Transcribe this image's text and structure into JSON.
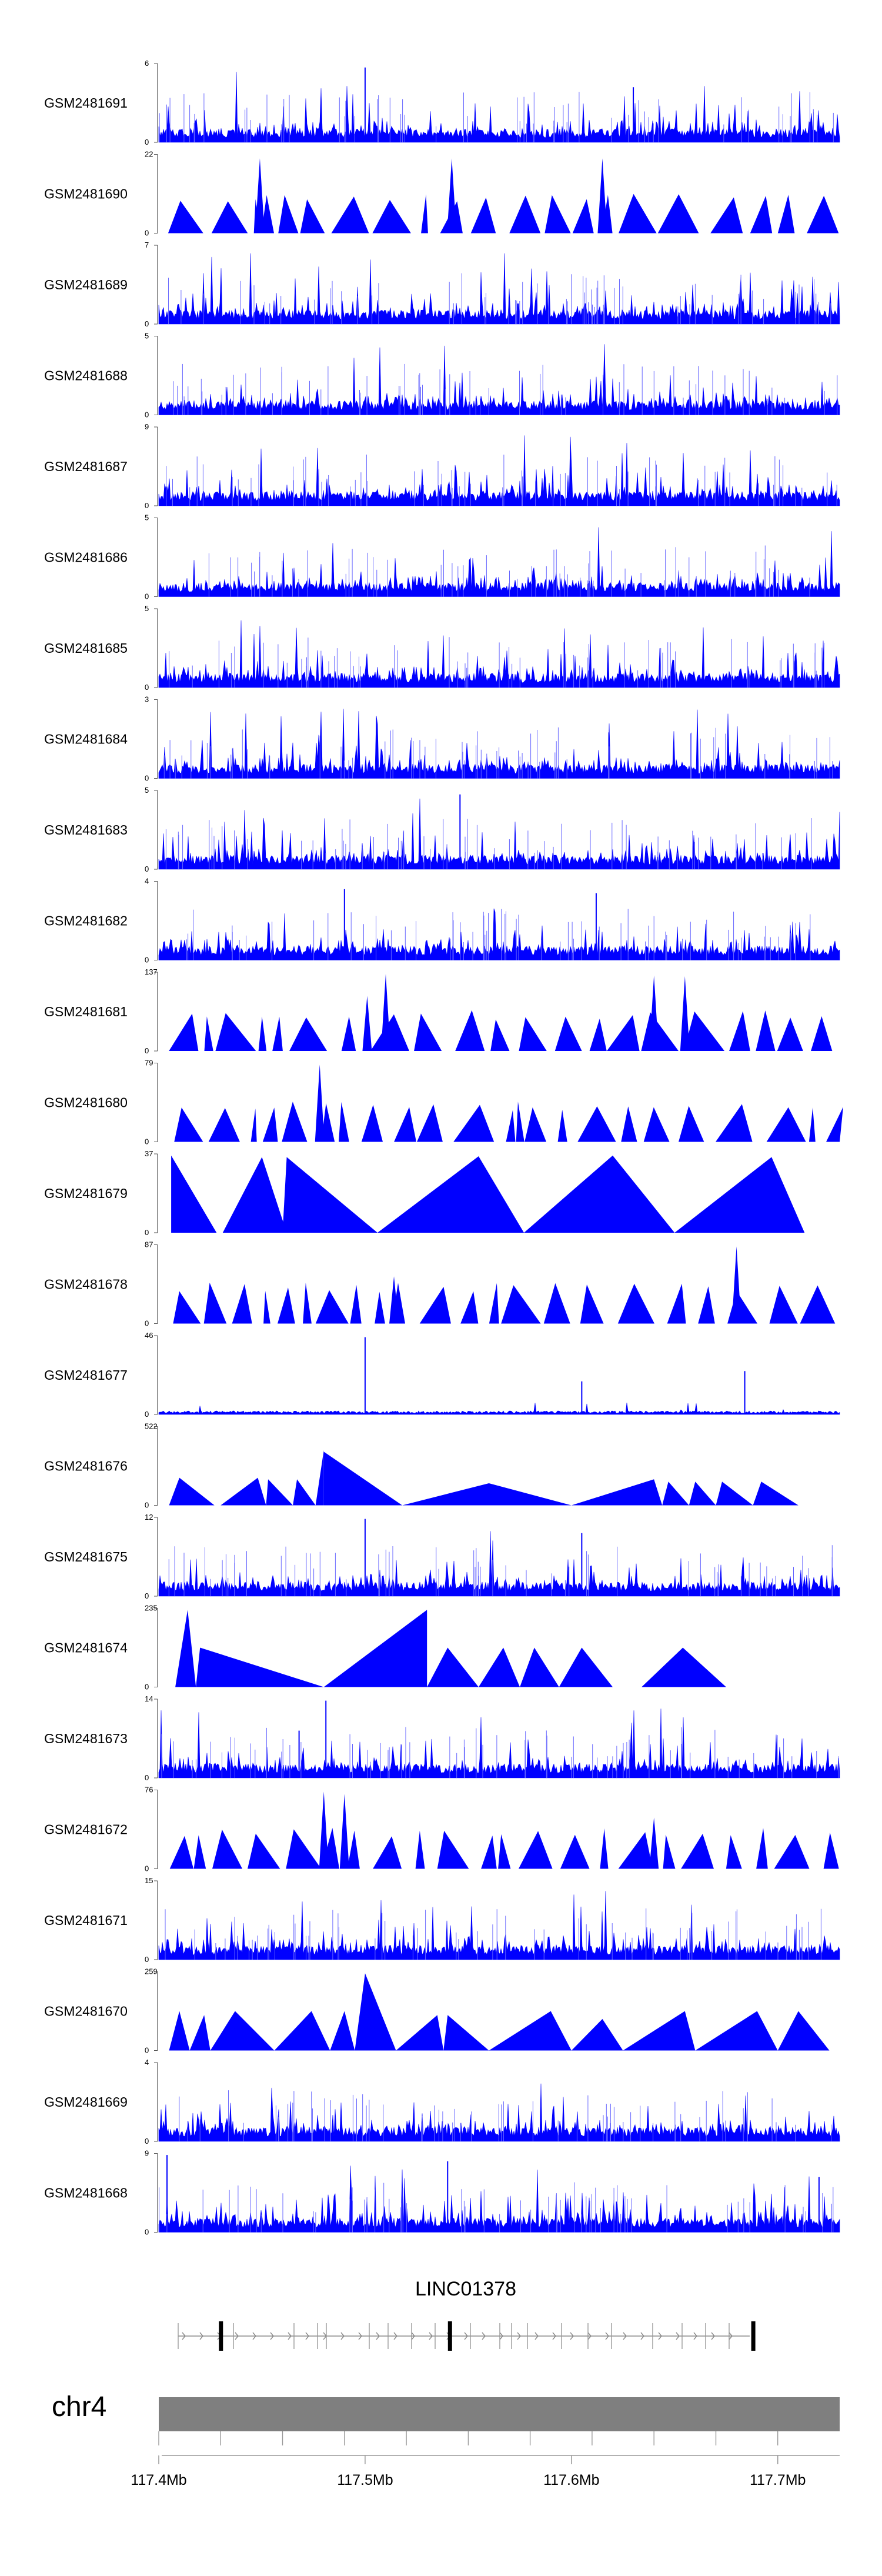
{
  "chart_data": {
    "type": "area",
    "title": "",
    "chromosome": "chr4",
    "gene": "LINC01378",
    "xlabel": "",
    "ylabel": "",
    "xlim": [
      117.4,
      117.73
    ],
    "x_ticks": [
      "117.4Mb",
      "117.5Mb",
      "117.6Mb",
      "117.7Mb"
    ],
    "x_tick_values": [
      117.4,
      117.5,
      117.6,
      117.7
    ],
    "series_color": "#0000ff",
    "exon_positions": [
      117.43,
      117.541,
      117.688
    ],
    "tracks": [
      {
        "name": "GSM2481691",
        "ymax": "6",
        "ymin": "0",
        "style": "spiky",
        "seed": 11,
        "peaks": [
          [
            117.5,
            0.95
          ],
          [
            117.63,
            0.7
          ]
        ]
      },
      {
        "name": "GSM2481690",
        "ymax": "22",
        "ymin": "0",
        "style": "triangles",
        "seed": 12,
        "peaks": [
          [
            117.449,
            0.95
          ],
          [
            117.542,
            0.95
          ],
          [
            117.615,
            0.95
          ]
        ]
      },
      {
        "name": "GSM2481689",
        "ymax": "7",
        "ymin": "0",
        "style": "spiky",
        "seed": 13,
        "peaks": []
      },
      {
        "name": "GSM2481688",
        "ymax": "5",
        "ymin": "0",
        "style": "spiky",
        "seed": 14,
        "peaks": []
      },
      {
        "name": "GSM2481687",
        "ymax": "9",
        "ymin": "0",
        "style": "spiky",
        "seed": 15,
        "peaks": []
      },
      {
        "name": "GSM2481686",
        "ymax": "5",
        "ymin": "0",
        "style": "spiky",
        "seed": 16,
        "peaks": []
      },
      {
        "name": "GSM2481685",
        "ymax": "5",
        "ymin": "0",
        "style": "spiky",
        "seed": 17,
        "peaks": []
      },
      {
        "name": "GSM2481684",
        "ymax": "3",
        "ymin": "0",
        "style": "spiky",
        "seed": 18,
        "peaks": []
      },
      {
        "name": "GSM2481683",
        "ymax": "5",
        "ymin": "0",
        "style": "spiky",
        "seed": 19,
        "peaks": [
          [
            117.546,
            0.95
          ]
        ]
      },
      {
        "name": "GSM2481682",
        "ymax": "4",
        "ymin": "0",
        "style": "spiky",
        "seed": 20,
        "peaks": [
          [
            117.49,
            0.9
          ],
          [
            117.612,
            0.85
          ]
        ]
      },
      {
        "name": "GSM2481681",
        "ymax": "137",
        "ymin": "0",
        "style": "triangles",
        "seed": 21,
        "peaks": [
          [
            117.51,
            0.98
          ],
          [
            117.501,
            0.7
          ],
          [
            117.64,
            0.96
          ],
          [
            117.655,
            0.95
          ]
        ]
      },
      {
        "name": "GSM2481680",
        "ymax": "79",
        "ymin": "0",
        "style": "triangles",
        "seed": 22,
        "peaks": [
          [
            117.478,
            0.98
          ]
        ]
      },
      {
        "name": "GSM2481679",
        "ymax": "37",
        "ymin": "0",
        "style": "wide",
        "seed": 23,
        "peaks": []
      },
      {
        "name": "GSM2481678",
        "ymax": "87",
        "ymin": "0",
        "style": "triangles",
        "seed": 24,
        "peaks": [
          [
            117.68,
            0.98
          ],
          [
            117.514,
            0.6
          ]
        ]
      },
      {
        "name": "GSM2481677",
        "ymax": "46",
        "ymin": "0",
        "style": "sparse",
        "seed": 25,
        "peaks": [
          [
            117.5,
            0.98
          ],
          [
            117.605,
            0.42
          ],
          [
            117.684,
            0.55
          ]
        ]
      },
      {
        "name": "GSM2481676",
        "ymax": "522",
        "ymin": "0",
        "style": "wide",
        "seed": 26,
        "peaks": []
      },
      {
        "name": "GSM2481675",
        "ymax": "12",
        "ymin": "0",
        "style": "spiky",
        "seed": 27,
        "peaks": [
          [
            117.5,
            0.98
          ],
          [
            117.605,
            0.8
          ]
        ]
      },
      {
        "name": "GSM2481674",
        "ymax": "235",
        "ymin": "0",
        "style": "wide",
        "seed": 28,
        "peaks": []
      },
      {
        "name": "GSM2481673",
        "ymax": "14",
        "ymin": "0",
        "style": "spiky",
        "seed": 29,
        "peaks": [
          [
            117.481,
            0.98
          ],
          [
            117.468,
            0.6
          ]
        ]
      },
      {
        "name": "GSM2481672",
        "ymax": "76",
        "ymin": "0",
        "style": "triangles",
        "seed": 30,
        "peaks": [
          [
            117.48,
            0.98
          ],
          [
            117.49,
            0.95
          ],
          [
            117.64,
            0.65
          ]
        ]
      },
      {
        "name": "GSM2481671",
        "ymax": "15",
        "ymin": "0",
        "style": "spiky",
        "seed": 31,
        "peaks": []
      },
      {
        "name": "GSM2481670",
        "ymax": "259",
        "ymin": "0",
        "style": "wide",
        "seed": 32,
        "peaks": []
      },
      {
        "name": "GSM2481669",
        "ymax": "4",
        "ymin": "0",
        "style": "spiky",
        "seed": 33,
        "peaks": []
      },
      {
        "name": "GSM2481668",
        "ymax": "9",
        "ymin": "0",
        "style": "spiky",
        "seed": 34,
        "peaks": [
          [
            117.404,
            0.98
          ],
          [
            117.54,
            0.9
          ],
          [
            117.72,
            0.7
          ]
        ]
      }
    ],
    "wide_shapes": {
      "GSM2481679": [
        [
          117.406,
          117.406,
          117.428,
          0.98
        ],
        [
          117.431,
          117.45,
          117.462,
          0.96
        ],
        [
          117.46,
          117.462,
          117.506,
          0.96
        ],
        [
          117.506,
          117.555,
          117.577,
          0.97
        ],
        [
          117.577,
          117.62,
          117.65,
          0.98
        ],
        [
          117.65,
          117.697,
          117.713,
          0.96
        ]
      ],
      "GSM2481676": [
        [
          117.405,
          117.41,
          117.427,
          0.35
        ],
        [
          117.43,
          117.448,
          117.452,
          0.35
        ],
        [
          117.452,
          117.453,
          117.465,
          0.33
        ],
        [
          117.465,
          117.467,
          117.476,
          0.33
        ],
        [
          117.476,
          117.48,
          117.48,
          0.7
        ],
        [
          117.48,
          117.48,
          117.518,
          0.68
        ],
        [
          117.518,
          117.56,
          117.56,
          0.28
        ],
        [
          117.56,
          117.56,
          117.6,
          0.28
        ],
        [
          117.6,
          117.64,
          117.644,
          0.33
        ],
        [
          117.644,
          117.647,
          117.657,
          0.3
        ],
        [
          117.657,
          117.66,
          117.67,
          0.3
        ],
        [
          117.67,
          117.673,
          117.688,
          0.3
        ],
        [
          117.688,
          117.692,
          117.71,
          0.3
        ]
      ],
      "GSM2481674": [
        [
          117.408,
          117.414,
          117.418,
          0.98
        ],
        [
          117.418,
          117.42,
          117.48,
          0.5
        ],
        [
          117.48,
          117.53,
          117.53,
          0.98
        ],
        [
          117.53,
          117.54,
          117.555,
          0.5
        ],
        [
          117.555,
          117.567,
          117.575,
          0.5
        ],
        [
          117.575,
          117.582,
          117.594,
          0.5
        ],
        [
          117.594,
          117.605,
          117.62,
          0.5
        ],
        [
          117.634,
          117.654,
          117.675,
          0.5
        ]
      ],
      "GSM2481670": [
        [
          117.405,
          117.41,
          117.415,
          0.5
        ],
        [
          117.415,
          117.422,
          117.425,
          0.45
        ],
        [
          117.425,
          117.437,
          117.456,
          0.5
        ],
        [
          117.456,
          117.474,
          117.483,
          0.5
        ],
        [
          117.483,
          117.49,
          117.495,
          0.5
        ],
        [
          117.495,
          117.5,
          117.515,
          0.98
        ],
        [
          117.515,
          117.535,
          117.538,
          0.45
        ],
        [
          117.538,
          117.54,
          117.56,
          0.45
        ],
        [
          117.56,
          117.59,
          117.6,
          0.5
        ],
        [
          117.6,
          117.615,
          117.625,
          0.4
        ],
        [
          117.625,
          117.655,
          117.66,
          0.5
        ],
        [
          117.66,
          117.69,
          117.7,
          0.5
        ],
        [
          117.7,
          117.71,
          117.725,
          0.5
        ]
      ]
    }
  }
}
